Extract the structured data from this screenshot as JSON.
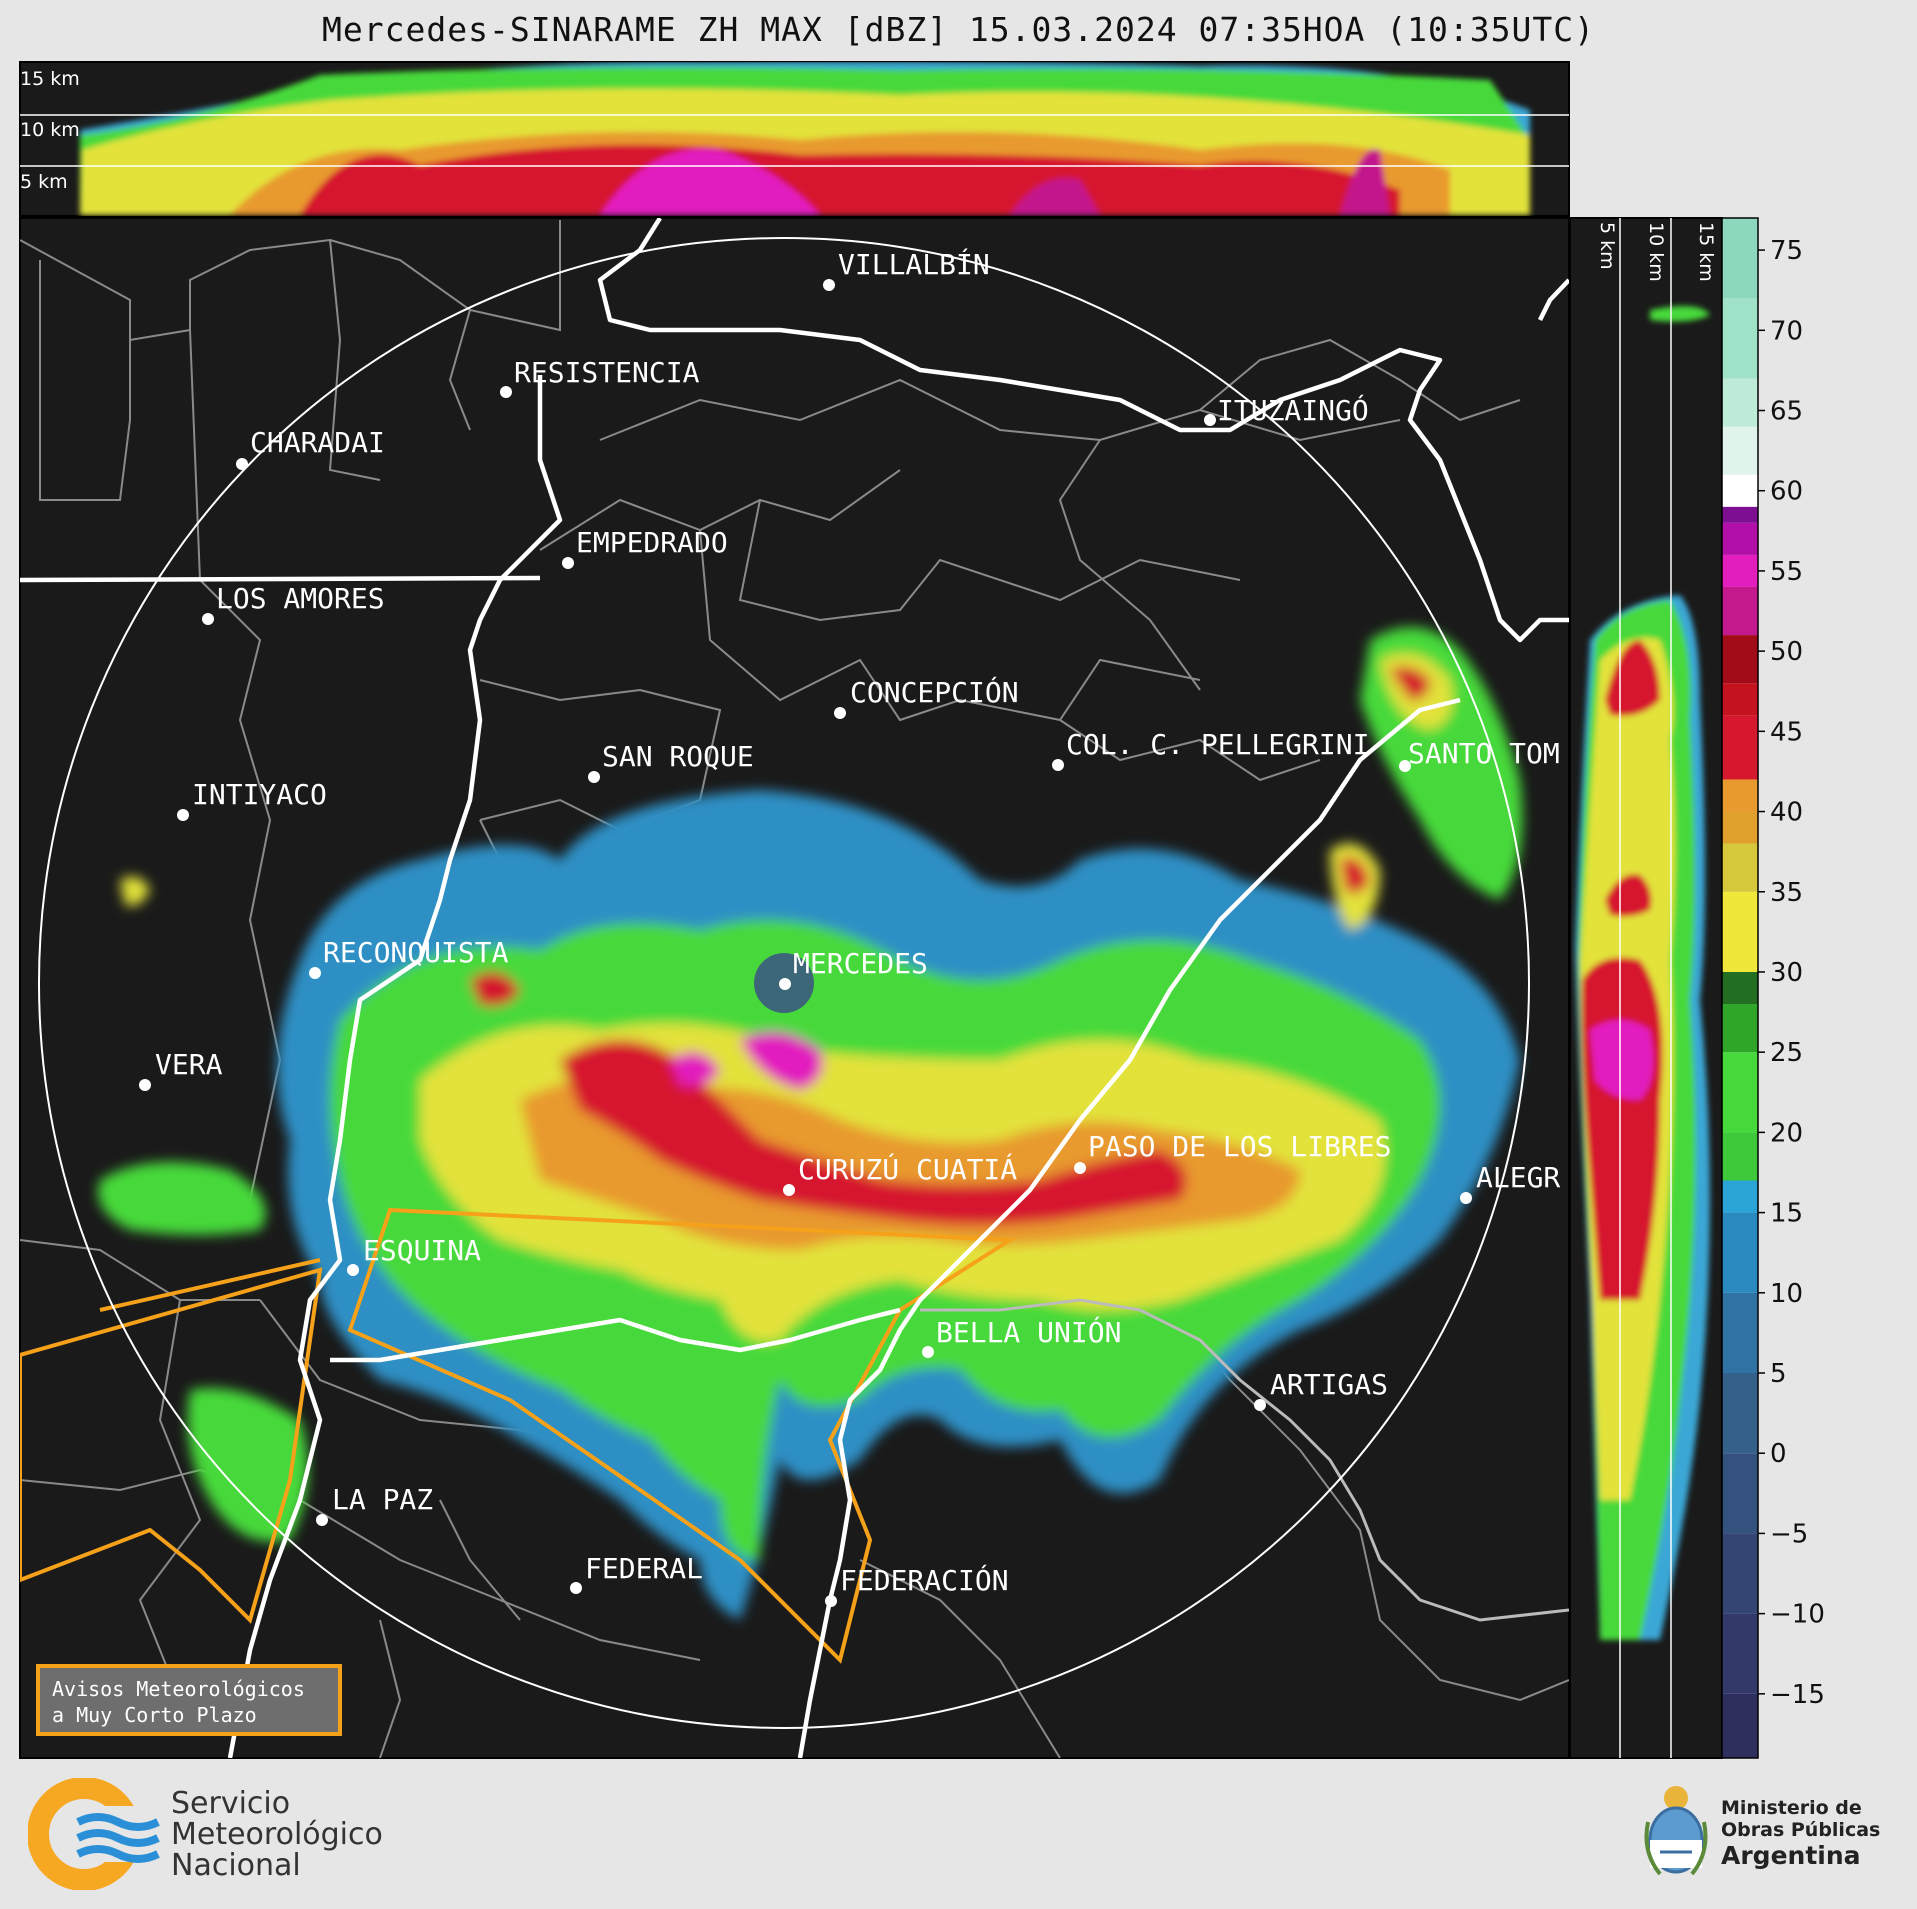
{
  "header": {
    "title": "Mercedes-SINARAME ZH MAX [dBZ] 15.03.2024 07:35HOA (10:35UTC)"
  },
  "top_panel": {
    "height_labels": [
      "15 km",
      "10 km",
      "5 km"
    ]
  },
  "side_panel": {
    "height_labels": [
      "5 km",
      "10 km",
      "15 km"
    ]
  },
  "map": {
    "cities": [
      {
        "name": "VILLALBÍN"
      },
      {
        "name": "RESISTENCIA"
      },
      {
        "name": "CHARADAI"
      },
      {
        "name": "ITUZAINGÓ"
      },
      {
        "name": "EMPEDRADO"
      },
      {
        "name": "LOS AMORES"
      },
      {
        "name": "CONCEPCIÓN"
      },
      {
        "name": "SAN ROQUE"
      },
      {
        "name": "COL. C. PELLEGRINI"
      },
      {
        "name": "SANTO TOM"
      },
      {
        "name": "INTIYACO"
      },
      {
        "name": "RECONQUISTA"
      },
      {
        "name": "MERCEDES"
      },
      {
        "name": "VERA"
      },
      {
        "name": "CURUZÚ CUATIÁ"
      },
      {
        "name": "PASO DE LOS LIBRES"
      },
      {
        "name": "ALEGR"
      },
      {
        "name": "ESQUINA"
      },
      {
        "name": "BELLA UNIÓN"
      },
      {
        "name": "ARTIGAS"
      },
      {
        "name": "LA PAZ"
      },
      {
        "name": "FEDERAL"
      },
      {
        "name": "FEDERACIÓN"
      }
    ]
  },
  "colorbar": {
    "ticks": [
      "75",
      "70",
      "65",
      "60",
      "55",
      "50",
      "45",
      "40",
      "35",
      "30",
      "25",
      "20",
      "15",
      "10",
      "5",
      "0",
      "−5",
      "−10",
      "−15"
    ],
    "min": -19,
    "max": 77
  },
  "legend_box": {
    "line1": "Avisos Meteorológicos",
    "line2": "a Muy Corto Plazo"
  },
  "footer": {
    "smn": [
      "Servicio",
      "Meteorológico",
      "Nacional"
    ],
    "ministry": [
      "Ministerio de",
      "Obras Públicas",
      "Argentina"
    ]
  },
  "colors": {
    "map_bg": "#1a1a1a",
    "page_bg": "#e6e6e6",
    "warning_outline": "#f5a11a",
    "river": "#ffffff",
    "border": "#8a8a8a",
    "smn_orange": "#f7a823",
    "smn_blue": "#2a8fd6"
  }
}
